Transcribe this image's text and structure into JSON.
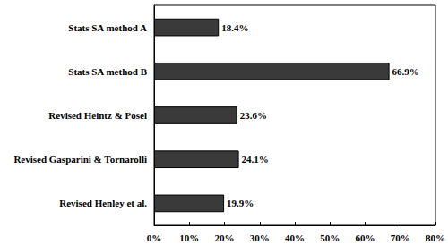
{
  "chart_data": {
    "type": "bar",
    "orientation": "horizontal",
    "categories": [
      "Stats SA method A",
      "Stats SA method B",
      "Revised Heintz & Posel",
      "Revised Gasparini & Tornarolli",
      "Revised Henley et al."
    ],
    "values": [
      18.4,
      66.9,
      23.6,
      24.1,
      19.9
    ],
    "value_labels": [
      "18.4%",
      "66.9%",
      "23.6%",
      "24.1%",
      "19.9%"
    ],
    "data_labels": true,
    "color": "#3a3a3a",
    "xlim": [
      0,
      80
    ],
    "xticks": [
      {
        "value": 0,
        "label": "0%"
      },
      {
        "value": 10,
        "label": "10%"
      },
      {
        "value": 20,
        "label": "20%"
      },
      {
        "value": 30,
        "label": "30%"
      },
      {
        "value": 40,
        "label": "40%"
      },
      {
        "value": 50,
        "label": "50%"
      },
      {
        "value": 60,
        "label": "60%"
      },
      {
        "value": 70,
        "label": "70%"
      },
      {
        "value": 80,
        "label": "80%"
      }
    ],
    "grid": false
  }
}
